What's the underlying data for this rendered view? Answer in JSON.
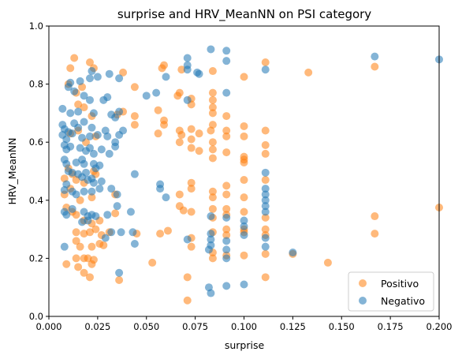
{
  "chart_data": {
    "type": "scatter",
    "title": "surprise and HRV_MeanNN on PSI category",
    "xlabel": "surprise",
    "ylabel": "HRV_MeanNN",
    "xlim": [
      0.0,
      0.2
    ],
    "ylim": [
      0.0,
      1.0
    ],
    "x_ticks": [
      "0.000",
      "0.025",
      "0.050",
      "0.075",
      "0.100",
      "0.125",
      "0.150",
      "0.175",
      "0.200"
    ],
    "y_ticks": [
      "0.0",
      "0.2",
      "0.4",
      "0.6",
      "0.8",
      "1.0"
    ],
    "grid": false,
    "legend_position": "lower-right",
    "colors": {
      "Positivo": "#ff7f0e",
      "Negativo": "#1f77b4"
    },
    "series": [
      {
        "name": "Positivo",
        "points": [
          [
            0.013,
            0.89
          ],
          [
            0.021,
            0.875
          ],
          [
            0.011,
            0.855
          ],
          [
            0.023,
            0.855
          ],
          [
            0.01,
            0.8
          ],
          [
            0.017,
            0.79
          ],
          [
            0.014,
            0.77
          ],
          [
            0.038,
            0.84
          ],
          [
            0.044,
            0.79
          ],
          [
            0.058,
            0.855
          ],
          [
            0.059,
            0.865
          ],
          [
            0.068,
            0.85
          ],
          [
            0.084,
            0.845
          ],
          [
            0.111,
            0.875
          ],
          [
            0.133,
            0.84
          ],
          [
            0.1,
            0.825
          ],
          [
            0.167,
            0.86
          ],
          [
            0.015,
            0.73
          ],
          [
            0.018,
            0.72
          ],
          [
            0.022,
            0.69
          ],
          [
            0.035,
            0.695
          ],
          [
            0.038,
            0.705
          ],
          [
            0.044,
            0.69
          ],
          [
            0.056,
            0.71
          ],
          [
            0.066,
            0.76
          ],
          [
            0.073,
            0.73
          ],
          [
            0.073,
            0.75
          ],
          [
            0.084,
            0.77
          ],
          [
            0.084,
            0.745
          ],
          [
            0.084,
            0.72
          ],
          [
            0.084,
            0.7
          ],
          [
            0.091,
            0.69
          ],
          [
            0.067,
            0.77
          ],
          [
            0.011,
            0.63
          ],
          [
            0.015,
            0.64
          ],
          [
            0.019,
            0.6
          ],
          [
            0.024,
            0.62
          ],
          [
            0.044,
            0.66
          ],
          [
            0.059,
            0.675
          ],
          [
            0.059,
            0.66
          ],
          [
            0.056,
            0.63
          ],
          [
            0.067,
            0.64
          ],
          [
            0.068,
            0.625
          ],
          [
            0.073,
            0.645
          ],
          [
            0.073,
            0.61
          ],
          [
            0.077,
            0.63
          ],
          [
            0.083,
            0.64
          ],
          [
            0.084,
            0.66
          ],
          [
            0.091,
            0.64
          ],
          [
            0.1,
            0.655
          ],
          [
            0.1,
            0.62
          ],
          [
            0.111,
            0.64
          ],
          [
            0.091,
            0.62
          ],
          [
            0.084,
            0.6
          ],
          [
            0.067,
            0.6
          ],
          [
            0.073,
            0.58
          ],
          [
            0.077,
            0.57
          ],
          [
            0.084,
            0.575
          ],
          [
            0.091,
            0.565
          ],
          [
            0.1,
            0.55
          ],
          [
            0.1,
            0.54
          ],
          [
            0.111,
            0.56
          ],
          [
            0.111,
            0.59
          ],
          [
            0.1,
            0.53
          ],
          [
            0.084,
            0.545
          ],
          [
            0.01,
            0.51
          ],
          [
            0.012,
            0.49
          ],
          [
            0.008,
            0.475
          ],
          [
            0.014,
            0.47
          ],
          [
            0.018,
            0.46
          ],
          [
            0.024,
            0.49
          ],
          [
            0.023,
            0.5
          ],
          [
            0.008,
            0.42
          ],
          [
            0.011,
            0.44
          ],
          [
            0.016,
            0.4
          ],
          [
            0.022,
            0.41
          ],
          [
            0.034,
            0.42
          ],
          [
            0.073,
            0.46
          ],
          [
            0.073,
            0.44
          ],
          [
            0.067,
            0.42
          ],
          [
            0.084,
            0.43
          ],
          [
            0.091,
            0.45
          ],
          [
            0.1,
            0.47
          ],
          [
            0.1,
            0.41
          ],
          [
            0.111,
            0.47
          ],
          [
            0.091,
            0.42
          ],
          [
            0.084,
            0.41
          ],
          [
            0.009,
            0.375
          ],
          [
            0.012,
            0.36
          ],
          [
            0.014,
            0.35
          ],
          [
            0.018,
            0.33
          ],
          [
            0.022,
            0.32
          ],
          [
            0.026,
            0.33
          ],
          [
            0.034,
            0.355
          ],
          [
            0.067,
            0.38
          ],
          [
            0.069,
            0.365
          ],
          [
            0.073,
            0.36
          ],
          [
            0.084,
            0.37
          ],
          [
            0.091,
            0.35
          ],
          [
            0.091,
            0.37
          ],
          [
            0.1,
            0.36
          ],
          [
            0.111,
            0.34
          ],
          [
            0.084,
            0.34
          ],
          [
            0.2,
            0.375
          ],
          [
            0.167,
            0.345
          ],
          [
            0.014,
            0.29
          ],
          [
            0.018,
            0.285
          ],
          [
            0.021,
            0.29
          ],
          [
            0.024,
            0.3
          ],
          [
            0.027,
            0.28
          ],
          [
            0.031,
            0.29
          ],
          [
            0.045,
            0.285
          ],
          [
            0.061,
            0.295
          ],
          [
            0.057,
            0.285
          ],
          [
            0.073,
            0.27
          ],
          [
            0.084,
            0.29
          ],
          [
            0.091,
            0.3
          ],
          [
            0.091,
            0.28
          ],
          [
            0.1,
            0.29
          ],
          [
            0.1,
            0.3
          ],
          [
            0.111,
            0.28
          ],
          [
            0.111,
            0.3
          ],
          [
            0.167,
            0.285
          ],
          [
            0.014,
            0.26
          ],
          [
            0.016,
            0.24
          ],
          [
            0.026,
            0.25
          ],
          [
            0.028,
            0.245
          ],
          [
            0.022,
            0.24
          ],
          [
            0.084,
            0.22
          ],
          [
            0.084,
            0.2
          ],
          [
            0.091,
            0.21
          ],
          [
            0.1,
            0.21
          ],
          [
            0.111,
            0.215
          ],
          [
            0.125,
            0.215
          ],
          [
            0.143,
            0.185
          ],
          [
            0.053,
            0.185
          ],
          [
            0.073,
            0.24
          ],
          [
            0.014,
            0.2
          ],
          [
            0.018,
            0.2
          ],
          [
            0.02,
            0.2
          ],
          [
            0.023,
            0.195
          ],
          [
            0.022,
            0.18
          ],
          [
            0.015,
            0.17
          ],
          [
            0.009,
            0.18
          ],
          [
            0.018,
            0.15
          ],
          [
            0.021,
            0.135
          ],
          [
            0.036,
            0.125
          ],
          [
            0.071,
            0.135
          ],
          [
            0.111,
            0.135
          ],
          [
            0.071,
            0.055
          ]
        ]
      },
      {
        "name": "Negativo",
        "points": [
          [
            0.083,
            0.92
          ],
          [
            0.091,
            0.915
          ],
          [
            0.071,
            0.89
          ],
          [
            0.091,
            0.88
          ],
          [
            0.111,
            0.85
          ],
          [
            0.167,
            0.895
          ],
          [
            0.2,
            0.885
          ],
          [
            0.071,
            0.865
          ],
          [
            0.071,
            0.85
          ],
          [
            0.076,
            0.84
          ],
          [
            0.077,
            0.835
          ],
          [
            0.06,
            0.825
          ],
          [
            0.031,
            0.835
          ],
          [
            0.022,
            0.845
          ],
          [
            0.025,
            0.825
          ],
          [
            0.021,
            0.82
          ],
          [
            0.016,
            0.81
          ],
          [
            0.011,
            0.805
          ],
          [
            0.01,
            0.79
          ],
          [
            0.013,
            0.775
          ],
          [
            0.036,
            0.82
          ],
          [
            0.091,
            0.77
          ],
          [
            0.071,
            0.745
          ],
          [
            0.05,
            0.76
          ],
          [
            0.055,
            0.77
          ],
          [
            0.03,
            0.755
          ],
          [
            0.028,
            0.745
          ],
          [
            0.018,
            0.76
          ],
          [
            0.021,
            0.745
          ],
          [
            0.007,
            0.715
          ],
          [
            0.015,
            0.705
          ],
          [
            0.032,
            0.695
          ],
          [
            0.036,
            0.705
          ],
          [
            0.034,
            0.685
          ],
          [
            0.011,
            0.7
          ],
          [
            0.023,
            0.7
          ],
          [
            0.007,
            0.66
          ],
          [
            0.008,
            0.645
          ],
          [
            0.013,
            0.665
          ],
          [
            0.018,
            0.67
          ],
          [
            0.015,
            0.65
          ],
          [
            0.022,
            0.65
          ],
          [
            0.029,
            0.64
          ],
          [
            0.007,
            0.625
          ],
          [
            0.009,
            0.61
          ],
          [
            0.01,
            0.635
          ],
          [
            0.012,
            0.63
          ],
          [
            0.017,
            0.615
          ],
          [
            0.021,
            0.62
          ],
          [
            0.025,
            0.625
          ],
          [
            0.03,
            0.62
          ],
          [
            0.036,
            0.625
          ],
          [
            0.034,
            0.6
          ],
          [
            0.038,
            0.64
          ],
          [
            0.008,
            0.59
          ],
          [
            0.009,
            0.575
          ],
          [
            0.011,
            0.585
          ],
          [
            0.016,
            0.58
          ],
          [
            0.019,
            0.57
          ],
          [
            0.023,
            0.56
          ],
          [
            0.021,
            0.58
          ],
          [
            0.027,
            0.575
          ],
          [
            0.031,
            0.56
          ],
          [
            0.034,
            0.585
          ],
          [
            0.008,
            0.54
          ],
          [
            0.009,
            0.525
          ],
          [
            0.014,
            0.53
          ],
          [
            0.017,
            0.54
          ],
          [
            0.018,
            0.525
          ],
          [
            0.023,
            0.525
          ],
          [
            0.026,
            0.52
          ],
          [
            0.01,
            0.5
          ],
          [
            0.012,
            0.495
          ],
          [
            0.015,
            0.49
          ],
          [
            0.017,
            0.48
          ],
          [
            0.019,
            0.495
          ],
          [
            0.024,
            0.51
          ],
          [
            0.022,
            0.475
          ],
          [
            0.02,
            0.47
          ],
          [
            0.023,
            0.46
          ],
          [
            0.027,
            0.465
          ],
          [
            0.044,
            0.49
          ],
          [
            0.009,
            0.455
          ],
          [
            0.008,
            0.435
          ],
          [
            0.012,
            0.43
          ],
          [
            0.014,
            0.42
          ],
          [
            0.018,
            0.43
          ],
          [
            0.022,
            0.43
          ],
          [
            0.026,
            0.44
          ],
          [
            0.032,
            0.44
          ],
          [
            0.035,
            0.42
          ],
          [
            0.057,
            0.455
          ],
          [
            0.06,
            0.41
          ],
          [
            0.057,
            0.44
          ],
          [
            0.008,
            0.36
          ],
          [
            0.012,
            0.37
          ],
          [
            0.009,
            0.35
          ],
          [
            0.018,
            0.36
          ],
          [
            0.02,
            0.345
          ],
          [
            0.022,
            0.35
          ],
          [
            0.024,
            0.345
          ],
          [
            0.03,
            0.35
          ],
          [
            0.035,
            0.38
          ],
          [
            0.042,
            0.36
          ],
          [
            0.02,
            0.33
          ],
          [
            0.017,
            0.325
          ],
          [
            0.083,
            0.345
          ],
          [
            0.091,
            0.34
          ],
          [
            0.1,
            0.33
          ],
          [
            0.1,
            0.31
          ],
          [
            0.111,
            0.36
          ],
          [
            0.111,
            0.38
          ],
          [
            0.111,
            0.4
          ],
          [
            0.111,
            0.42
          ],
          [
            0.111,
            0.44
          ],
          [
            0.111,
            0.495
          ],
          [
            0.008,
            0.24
          ],
          [
            0.032,
            0.29
          ],
          [
            0.037,
            0.29
          ],
          [
            0.029,
            0.27
          ],
          [
            0.043,
            0.29
          ],
          [
            0.044,
            0.25
          ],
          [
            0.071,
            0.265
          ],
          [
            0.083,
            0.285
          ],
          [
            0.083,
            0.265
          ],
          [
            0.083,
            0.245
          ],
          [
            0.091,
            0.26
          ],
          [
            0.1,
            0.28
          ],
          [
            0.111,
            0.27
          ],
          [
            0.111,
            0.24
          ],
          [
            0.091,
            0.23
          ],
          [
            0.082,
            0.23
          ],
          [
            0.125,
            0.22
          ],
          [
            0.091,
            0.2
          ],
          [
            0.036,
            0.15
          ],
          [
            0.082,
            0.1
          ],
          [
            0.091,
            0.105
          ],
          [
            0.1,
            0.11
          ],
          [
            0.083,
            0.08
          ]
        ]
      }
    ]
  }
}
